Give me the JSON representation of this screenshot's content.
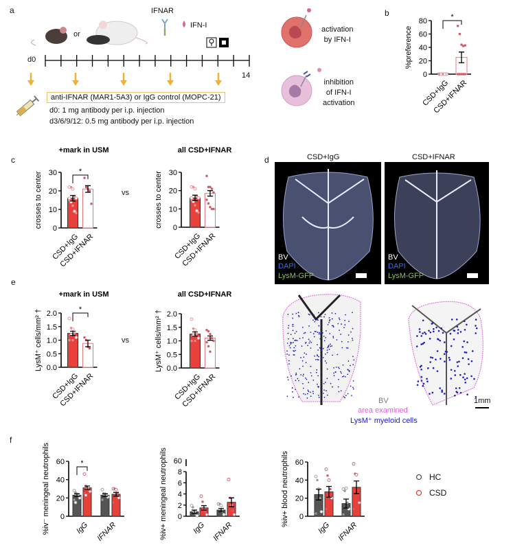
{
  "panel_labels": {
    "a": "a",
    "b": "b",
    "c": "c",
    "d": "d",
    "e": "e",
    "f": "f"
  },
  "panel_a": {
    "or": "or",
    "ifnar": "IFNAR",
    "ifn_i": "IFN-I",
    "day_start": "d0",
    "day_end": "14",
    "treatment": "anti-IFNAR (MAR1-5A3) or IgG control (MOPC-21)",
    "dose_d0": "d0: 1 mg antibody per i.p. injection",
    "dose_later": "d3/6/9/12: 0.5 mg antibody per i.p. injection",
    "activation": [
      "activation",
      "by IFN-I"
    ],
    "inhibition": [
      "inhibition",
      "of IFN-I",
      "activation"
    ],
    "colors": {
      "arrow": "#f0b132",
      "box": "#e8c36a",
      "activated_cell": "#e0726e",
      "inhibited_cell": "#e8b8d8"
    }
  },
  "vs": [
    "vs",
    "vs"
  ],
  "panel_d": {
    "left_title": "CSD+IgG",
    "right_title": "CSD+IFNAR",
    "legend_bv": "BV",
    "legend_dapi": "DAPI",
    "legend_gfp": "LysM-GFP",
    "bottom_bv": "BV",
    "bottom_area": "area examined",
    "bottom_cells": "LysM⁺ myeloid cells",
    "scale": "1mm",
    "colors": {
      "dapi": "#3b6fe0",
      "gfp": "#8fbf5a",
      "area": "#e060e0",
      "cells": "#2020c0"
    }
  },
  "legend_f": {
    "hc": "HC",
    "csd": "CSD",
    "colors": {
      "hc": "#555555",
      "csd": "#e8403a"
    }
  },
  "chart_data": [
    {
      "id": "b",
      "type": "bar",
      "title": "",
      "ylabel": "%preference",
      "ylim": [
        0,
        80
      ],
      "yticks": [
        "0",
        "20",
        "40",
        "60",
        "80"
      ],
      "xlabels": [
        "CSD+IgG",
        "CSD+IFNAR"
      ],
      "bars": [
        {
          "label": "CSD+IgG",
          "mean": 0,
          "sem": 0,
          "style": "filled",
          "points": [
            0,
            0,
            0,
            0,
            0,
            0,
            0,
            0,
            0
          ]
        },
        {
          "label": "CSD+IFNAR",
          "mean": 25,
          "sem": 8,
          "style": "open",
          "points": [
            72,
            60,
            44,
            42,
            43,
            0,
            0,
            0,
            0,
            0
          ]
        }
      ],
      "sig": [
        {
          "from": 0,
          "to": 1,
          "y": 80,
          "label": "*"
        }
      ]
    },
    {
      "id": "c1",
      "type": "bar",
      "title": "+mark in USM",
      "ylabel": "crosses to center",
      "ylim": [
        0,
        30
      ],
      "yticks": [
        "0",
        "10",
        "20",
        "30"
      ],
      "xlabels": [
        "CSD+IgG",
        "CSD+IFNAR"
      ],
      "bars": [
        {
          "label": "CSD+IgG",
          "mean": 16,
          "sem": 1.5,
          "style": "filled",
          "points": [
            22,
            22,
            21,
            17,
            16,
            15,
            14,
            12,
            9,
            8,
            16
          ]
        },
        {
          "label": "CSD+IFNAR",
          "mean": 21,
          "sem": 1.8,
          "style": "open",
          "points": [
            27,
            22,
            21,
            20,
            13
          ]
        }
      ],
      "sig": [
        {
          "from": 0,
          "to": 1,
          "y": 28.5,
          "label": "*"
        }
      ]
    },
    {
      "id": "c2",
      "type": "bar",
      "title": "all CSD+IFNAR",
      "ylabel": "crosses to center",
      "ylim": [
        0,
        30
      ],
      "yticks": [
        "0",
        "10",
        "20",
        "30"
      ],
      "xlabels": [
        "CSD+IgG",
        "CSD+IFNAR"
      ],
      "bars": [
        {
          "label": "CSD+IgG",
          "mean": 16,
          "sem": 1.5,
          "style": "filled",
          "points": [
            22,
            22,
            21,
            17,
            16,
            15,
            14,
            12,
            9,
            8,
            16
          ]
        },
        {
          "label": "CSD+IFNAR",
          "mean": 18.5,
          "sem": 1.5,
          "style": "open",
          "points": [
            28,
            22,
            22,
            21,
            19,
            15,
            13,
            11,
            10,
            10
          ]
        }
      ],
      "sig": []
    },
    {
      "id": "e1",
      "type": "bar",
      "title": "+mark in USM",
      "ylabel": "LysM⁺ cells/mm² †",
      "ylim": [
        0,
        2
      ],
      "yticks": [
        "0.0",
        "0.5",
        "1.0",
        "1.5",
        "2.0"
      ],
      "xlabels": [
        "CSD+IgG",
        "CSD+IFNAR"
      ],
      "bars": [
        {
          "label": "CSD+IgG",
          "mean": 1.25,
          "sem": 0.08,
          "style": "filled",
          "points": [
            1.8,
            1.45,
            1.4,
            1.25,
            1.1,
            1.0,
            1.2,
            1.0
          ]
        },
        {
          "label": "CSD+IFNAR",
          "mean": 0.88,
          "sem": 0.12,
          "style": "open",
          "points": [
            1.1,
            1.0,
            0.75,
            0.7
          ]
        }
      ],
      "sig": [
        {
          "from": 0,
          "to": 1,
          "y": 2.0,
          "label": "*"
        }
      ]
    },
    {
      "id": "e2",
      "type": "bar",
      "title": "all CSD+IFNAR",
      "ylabel": "LysM⁺ cells/mm² †",
      "ylim": [
        0,
        2
      ],
      "yticks": [
        "0.0",
        "0.5",
        "1.0",
        "1.5",
        "2.0"
      ],
      "xlabels": [
        "CSD+IgG",
        "CSD+IFNAR"
      ],
      "bars": [
        {
          "label": "CSD+IgG",
          "mean": 1.25,
          "sem": 0.08,
          "style": "filled",
          "points": [
            1.8,
            1.45,
            1.4,
            1.25,
            1.1,
            1.0,
            1.2,
            1.0
          ]
        },
        {
          "label": "CSD+IFNAR",
          "mean": 1.1,
          "sem": 0.08,
          "style": "open",
          "points": [
            1.4,
            1.35,
            1.25,
            1.1,
            1.0,
            0.95,
            0.8,
            0.6
          ]
        }
      ],
      "sig": []
    },
    {
      "id": "f1",
      "type": "bar",
      "title": "",
      "ylabel": "%iv⁻ meningeal neutrophils",
      "ylim": [
        0,
        60
      ],
      "yticks": [
        "0",
        "20",
        "40",
        "60"
      ],
      "xlabels": [
        "IgG",
        "IFNAR"
      ],
      "bars": [
        {
          "label": "IgG HC",
          "mean": 23,
          "sem": 1.5,
          "style": "hc",
          "points": [
            28,
            26,
            24,
            22,
            20,
            18,
            15
          ]
        },
        {
          "label": "IgG CSD",
          "mean": 31,
          "sem": 2,
          "style": "csd",
          "points": [
            46,
            33,
            30,
            28,
            27,
            25,
            23
          ]
        },
        {
          "label": "IFNAR HC",
          "mean": 23,
          "sem": 1.5,
          "style": "hc",
          "points": [
            29,
            25,
            24,
            22,
            21,
            18
          ]
        },
        {
          "label": "IFNAR CSD",
          "mean": 24,
          "sem": 2,
          "style": "csd",
          "points": [
            30,
            30,
            29,
            25,
            20,
            15
          ]
        }
      ],
      "sig": [
        {
          "from": 0,
          "to": 1,
          "y": 54,
          "label": "*"
        }
      ]
    },
    {
      "id": "f2",
      "type": "bar",
      "title": "",
      "ylabel": "%iv+ meningeal neutrophils",
      "ylim": [
        0,
        8
      ],
      "yticks": [
        "0",
        "2",
        "4",
        "6",
        "8"
      ],
      "axis_break_label": "60",
      "xlabels": [
        "IgG",
        "IFNAR"
      ],
      "bars": [
        {
          "label": "IgG HC",
          "mean": 0.8,
          "sem": 0.3,
          "style": "hc",
          "points": [
            1.9,
            1.6,
            0.8,
            0.3,
            0.1
          ]
        },
        {
          "label": "IgG CSD",
          "mean": 1.5,
          "sem": 0.4,
          "style": "csd",
          "points": [
            3.6,
            2.6,
            1.2,
            0.8,
            0.3
          ]
        },
        {
          "label": "IFNAR HC",
          "mean": 1.1,
          "sem": 0.3,
          "style": "hc",
          "points": [
            2.2,
            2.2,
            1.9,
            0.8,
            0.3
          ]
        },
        {
          "label": "IFNAR CSD",
          "mean": 2.5,
          "sem": 0.8,
          "style": "csd",
          "points": [
            6.6,
            3.3,
            2.0,
            1.0,
            0.3
          ]
        }
      ],
      "sig": []
    },
    {
      "id": "f3",
      "type": "bar",
      "title": "",
      "ylabel": "%iv+ blood neutrophils",
      "ylim": [
        0,
        60
      ],
      "yticks": [
        "0",
        "20",
        "40",
        "60"
      ],
      "xlabels": [
        "IgG",
        "IFNAR"
      ],
      "bars": [
        {
          "label": "IgG HC",
          "mean": 24,
          "sem": 6,
          "style": "hc",
          "points": [
            44,
            40,
            30,
            20,
            5,
            3
          ]
        },
        {
          "label": "IgG CSD",
          "mean": 27,
          "sem": 6,
          "style": "csd",
          "points": [
            52,
            45,
            40,
            30,
            20,
            8
          ]
        },
        {
          "label": "IFNAR HC",
          "mean": 14,
          "sem": 5,
          "style": "hc",
          "points": [
            30,
            28,
            31,
            15,
            8,
            2
          ]
        },
        {
          "label": "IFNAR CSD",
          "mean": 32,
          "sem": 7,
          "style": "csd",
          "points": [
            58,
            47,
            46,
            25,
            15,
            8
          ]
        }
      ],
      "sig": []
    }
  ]
}
